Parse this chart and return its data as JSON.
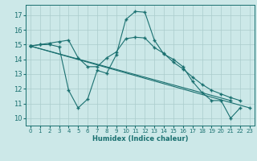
{
  "xlabel": "Humidex (Indice chaleur)",
  "xlim": [
    -0.5,
    23.5
  ],
  "ylim": [
    9.5,
    17.7
  ],
  "yticks": [
    10,
    11,
    12,
    13,
    14,
    15,
    16,
    17
  ],
  "xticks": [
    0,
    1,
    2,
    3,
    4,
    5,
    6,
    7,
    8,
    9,
    10,
    11,
    12,
    13,
    14,
    15,
    16,
    17,
    18,
    19,
    20,
    21,
    22,
    23
  ],
  "bg_color": "#cce8e8",
  "grid_color": "#aacccc",
  "line_color": "#1a7070",
  "lines": [
    {
      "x": [
        0,
        1,
        2,
        3,
        4,
        5,
        6,
        7,
        8,
        9,
        10,
        11,
        12,
        13,
        14,
        15,
        16,
        17,
        18,
        19,
        20,
        21,
        22,
        23
      ],
      "y": [
        14.9,
        15.0,
        15.0,
        14.85,
        11.9,
        10.7,
        11.3,
        13.25,
        13.05,
        14.3,
        16.7,
        17.25,
        17.2,
        15.3,
        14.35,
        14.0,
        13.5,
        12.5,
        11.75,
        11.2,
        11.2,
        10.0,
        10.7,
        null
      ]
    },
    {
      "x": [
        0,
        1,
        2,
        3,
        4,
        5,
        6,
        7,
        8,
        9,
        10,
        11,
        12,
        13,
        14,
        15,
        16,
        17,
        18,
        19,
        20,
        21,
        22,
        23
      ],
      "y": [
        14.9,
        15.0,
        15.1,
        15.2,
        15.3,
        14.1,
        13.5,
        13.5,
        14.1,
        14.5,
        15.4,
        15.5,
        15.45,
        14.8,
        14.4,
        13.8,
        13.35,
        12.8,
        12.3,
        11.9,
        11.65,
        11.4,
        11.2,
        null
      ]
    },
    {
      "x": [
        0,
        21
      ],
      "y": [
        14.9,
        11.2
      ]
    },
    {
      "x": [
        0,
        23
      ],
      "y": [
        14.9,
        10.7
      ]
    }
  ]
}
